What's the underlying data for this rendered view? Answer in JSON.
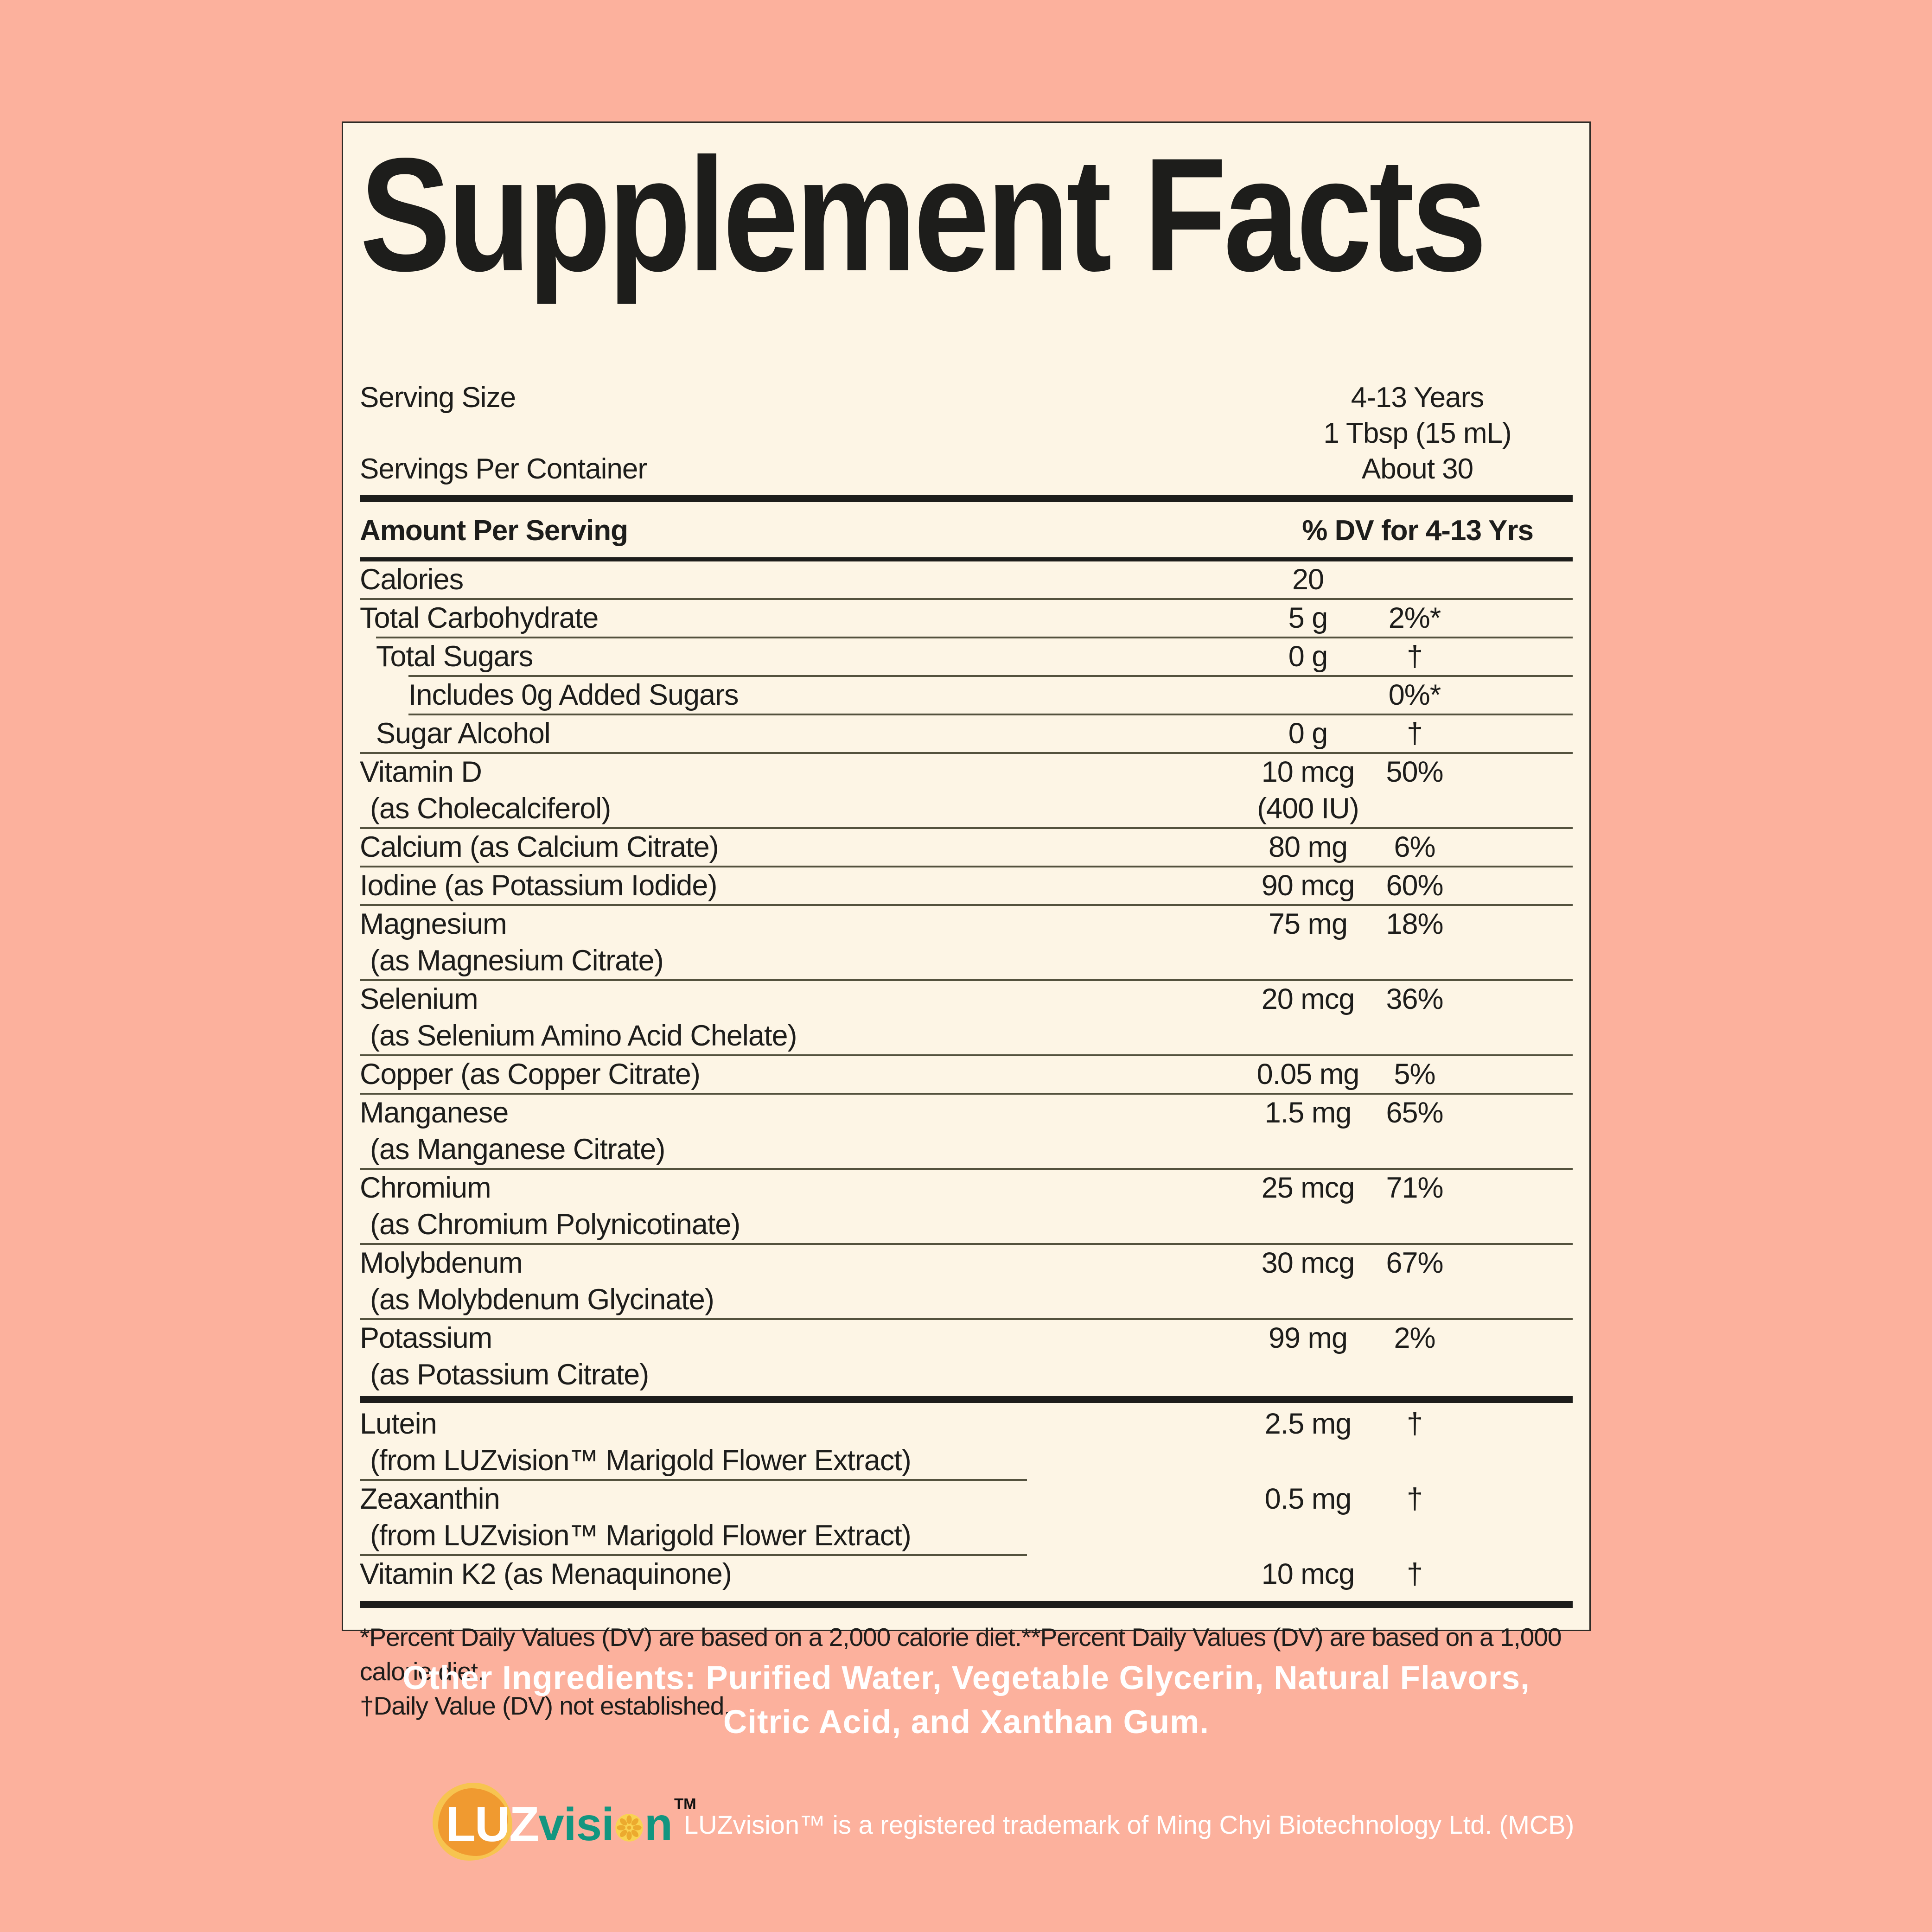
{
  "colors": {
    "background": "#FCB19D",
    "panel": "#FDF5E5",
    "text": "#1D1D1B",
    "divider": "#54523E",
    "accent_teal": "#129680",
    "logo_orange": "#F09A30",
    "logo_yellow": "#F7C450",
    "sun_yellow": "#F9D352",
    "sun_spokes": "#ECAA2E",
    "white": "#FFFFFF"
  },
  "label": {
    "title": "Supplement Facts",
    "serving": {
      "size_label": "Serving Size",
      "size_value_line1": "4-13 Years",
      "size_value_line2": "1 Tbsp (15 mL)",
      "container_label": "Servings Per Container",
      "container_value": "About 30"
    },
    "header": {
      "left": "Amount Per Serving",
      "right": "% DV for 4-13 Yrs"
    },
    "rows": [
      {
        "name": "Calories",
        "amount": "20",
        "dv": "",
        "indent": 0,
        "divider_before": "none"
      },
      {
        "name": "Total Carbohydrate",
        "amount": "5 g",
        "dv": "2%*",
        "indent": 0,
        "divider_before": "full"
      },
      {
        "name": "Total Sugars",
        "amount": "0 g",
        "dv": "†",
        "indent": 1,
        "divider_before": "i1"
      },
      {
        "name": "Includes 0g Added Sugars",
        "amount": "",
        "dv": "0%*",
        "indent": 2,
        "divider_before": "i2"
      },
      {
        "name": "Sugar Alcohol",
        "amount": "0 g",
        "dv": "†",
        "indent": 1,
        "divider_before": "i2"
      },
      {
        "name": "Vitamin D",
        "sub": "(as Cholecalciferol)",
        "amount": "10 mcg",
        "sub_amount": "(400 IU)",
        "dv": "50%",
        "indent": 0,
        "divider_before": "full"
      },
      {
        "name": "Calcium (as Calcium Citrate)",
        "amount": "80 mg",
        "dv": "6%",
        "indent": 0,
        "divider_before": "full"
      },
      {
        "name": "Iodine (as Potassium Iodide)",
        "amount": "90 mcg",
        "dv": "60%",
        "indent": 0,
        "divider_before": "full"
      },
      {
        "name": "Magnesium",
        "sub": "(as Magnesium Citrate)",
        "amount": "75 mg",
        "dv": "18%",
        "indent": 0,
        "divider_before": "full"
      },
      {
        "name": "Selenium",
        "sub": "(as Selenium Amino Acid Chelate)",
        "amount": "20 mcg",
        "dv": "36%",
        "indent": 0,
        "divider_before": "full"
      },
      {
        "name": "Copper (as Copper Citrate)",
        "amount": "0.05 mg",
        "dv": "5%",
        "indent": 0,
        "divider_before": "full"
      },
      {
        "name": "Manganese",
        "sub": "(as Manganese Citrate)",
        "amount": "1.5 mg",
        "dv": "65%",
        "indent": 0,
        "divider_before": "full"
      },
      {
        "name": "Chromium",
        "sub": "(as Chromium Polynicotinate)",
        "amount": "25 mcg",
        "dv": "71%",
        "indent": 0,
        "divider_before": "full"
      },
      {
        "name": "Molybdenum",
        "sub": "(as Molybdenum Glycinate)",
        "amount": "30 mcg",
        "dv": "67%",
        "indent": 0,
        "divider_before": "full"
      },
      {
        "name": "Potassium",
        "sub": "(as Potassium Citrate)",
        "amount": "99 mg",
        "dv": "2%",
        "indent": 0,
        "divider_before": "full"
      },
      {
        "name": "Lutein",
        "sub": "(from LUZvision™ Marigold Flower Extract)",
        "amount": "2.5 mg",
        "dv": "†",
        "indent": 0,
        "divider_before": "thick"
      },
      {
        "name": "Zeaxanthin",
        "sub": "(from LUZvision™ Marigold Flower Extract)",
        "amount": "0.5 mg",
        "dv": "†",
        "indent": 0,
        "divider_before": "partial"
      },
      {
        "name": "Vitamin K2 (as Menaquinone)",
        "amount": "10 mcg",
        "dv": "†",
        "indent": 0,
        "divider_before": "partial"
      }
    ],
    "footnotes": [
      "*Percent Daily Values (DV) are based on a 2,000 calorie diet.**Percent Daily Values (DV) are based on a 1,000 calorie diet.",
      "†Daily Value (DV) not established."
    ]
  },
  "other_ingredients": {
    "lines": [
      "Other Ingredients: Purified Water, Vegetable Glycerin, Natural Flavors,",
      "Citric Acid, and Xanthan Gum."
    ]
  },
  "footer": {
    "logo": {
      "luz": "LUZ",
      "vision_prefix": "visi",
      "vision_suffix": "n",
      "tm": "TM"
    },
    "trademark_text": "LUZvision™ is a registered trademark of Ming Chyi Biotechnology Ltd. (MCB)"
  }
}
